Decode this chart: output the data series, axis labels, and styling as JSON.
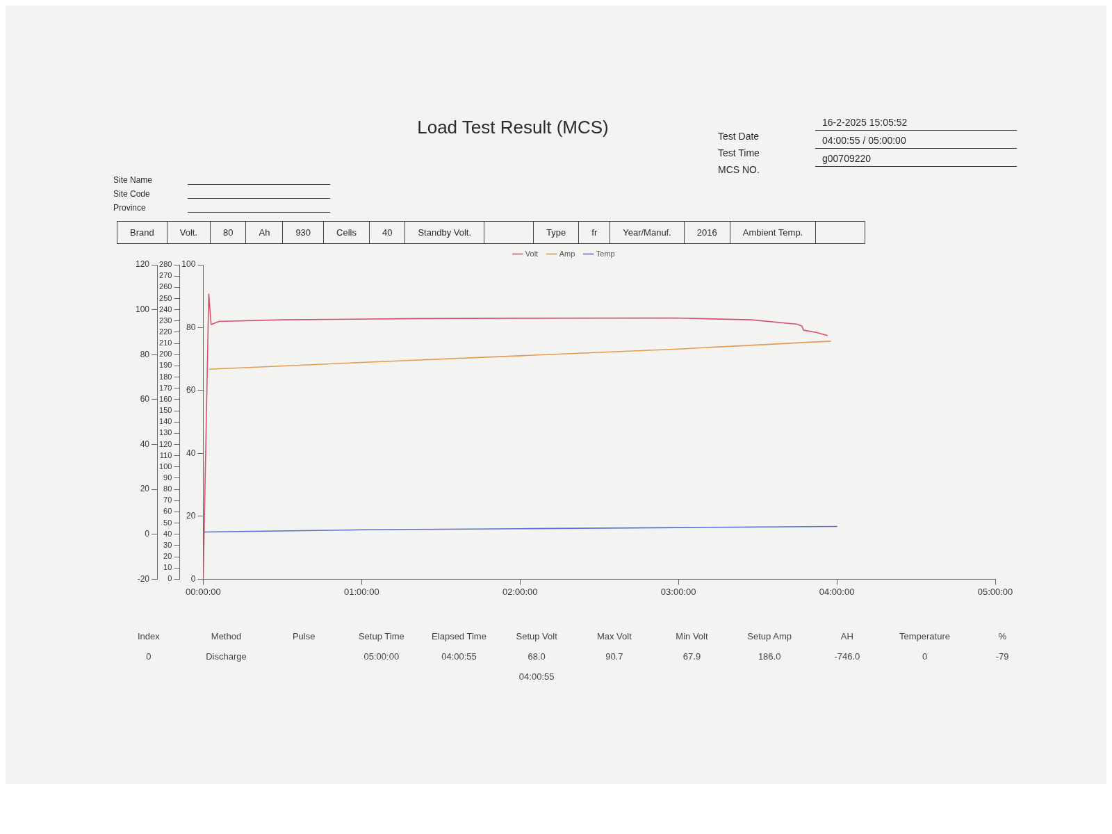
{
  "chart_data": {
    "type": "line",
    "title": "Load Test Result (MCS)",
    "annotations": [
      "Test Date",
      "16-2-2025 15:05:52",
      "Test Time",
      "04:00:55 / 05:00:00",
      "MCS NO.",
      "g00709220",
      "Site Name",
      "Site Code",
      "Province",
      "Brand",
      "Volt.",
      "80",
      "Ah",
      "930",
      "Cells",
      "40",
      "Standby Volt.",
      "Type",
      "fr",
      "Year/Manuf.",
      "2016",
      "Ambient Temp.",
      "Index",
      "Method",
      "Pulse",
      "Setup Time",
      "Elapsed Time",
      "Setup Volt",
      "Max Volt",
      "Min Volt",
      "Setup Amp",
      "AH",
      "Temperature",
      "%",
      "0",
      "Discharge",
      "05:00:00",
      "04:00:55",
      "68.0",
      "90.7",
      "67.9",
      "186.0",
      "-746.0",
      "0",
      "-79",
      "04:00:55"
    ],
    "xlim": [
      0,
      5
    ],
    "xticks": [
      {
        "value": 0,
        "label": "00:00:00"
      },
      {
        "value": 1,
        "label": "01:00:00"
      },
      {
        "value": 2,
        "label": "02:00:00"
      },
      {
        "value": 3,
        "label": "03:00:00"
      },
      {
        "value": 4,
        "label": "04:00:00"
      },
      {
        "value": 5,
        "label": "05:00:00"
      }
    ],
    "ylim": [
      0,
      100
    ],
    "yticks": [
      0,
      20,
      40,
      60,
      80,
      100
    ],
    "y2lim": [
      0,
      280
    ],
    "y2ticks": [
      0,
      10,
      20,
      30,
      40,
      50,
      60,
      70,
      80,
      90,
      100,
      110,
      120,
      130,
      140,
      150,
      160,
      170,
      180,
      190,
      200,
      210,
      220,
      230,
      240,
      250,
      260,
      270,
      280
    ],
    "y3lim": [
      -20,
      120
    ],
    "y3ticks": [
      -20,
      0,
      20,
      40,
      60,
      80,
      100,
      120
    ],
    "legend": "top",
    "marker": "none",
    "series": [
      {
        "name": "Volt",
        "color": "#d9506e",
        "x": [
          0,
          0.035,
          0.05,
          0.1,
          0.5,
          1.35,
          2,
          2.97,
          3.46,
          3.75,
          3.78,
          3.79,
          3.87,
          3.94
        ],
        "values": [
          0,
          90.7,
          81,
          82,
          82.5,
          82.9,
          83,
          83.1,
          82.5,
          81.1,
          80.5,
          79.2,
          78.5,
          77.5
        ]
      },
      {
        "name": "Amp",
        "color": "#e39b4f",
        "axis": "y2",
        "x": [
          0.04,
          1,
          2,
          3,
          3.96
        ],
        "values": [
          187,
          193,
          199,
          205,
          212
        ]
      },
      {
        "name": "Temp",
        "color": "#5a6fd6",
        "axis": "y3",
        "x": [
          0,
          1,
          2,
          3,
          4
        ],
        "values": [
          1,
          2,
          2.5,
          3,
          3.5
        ]
      }
    ]
  }
}
